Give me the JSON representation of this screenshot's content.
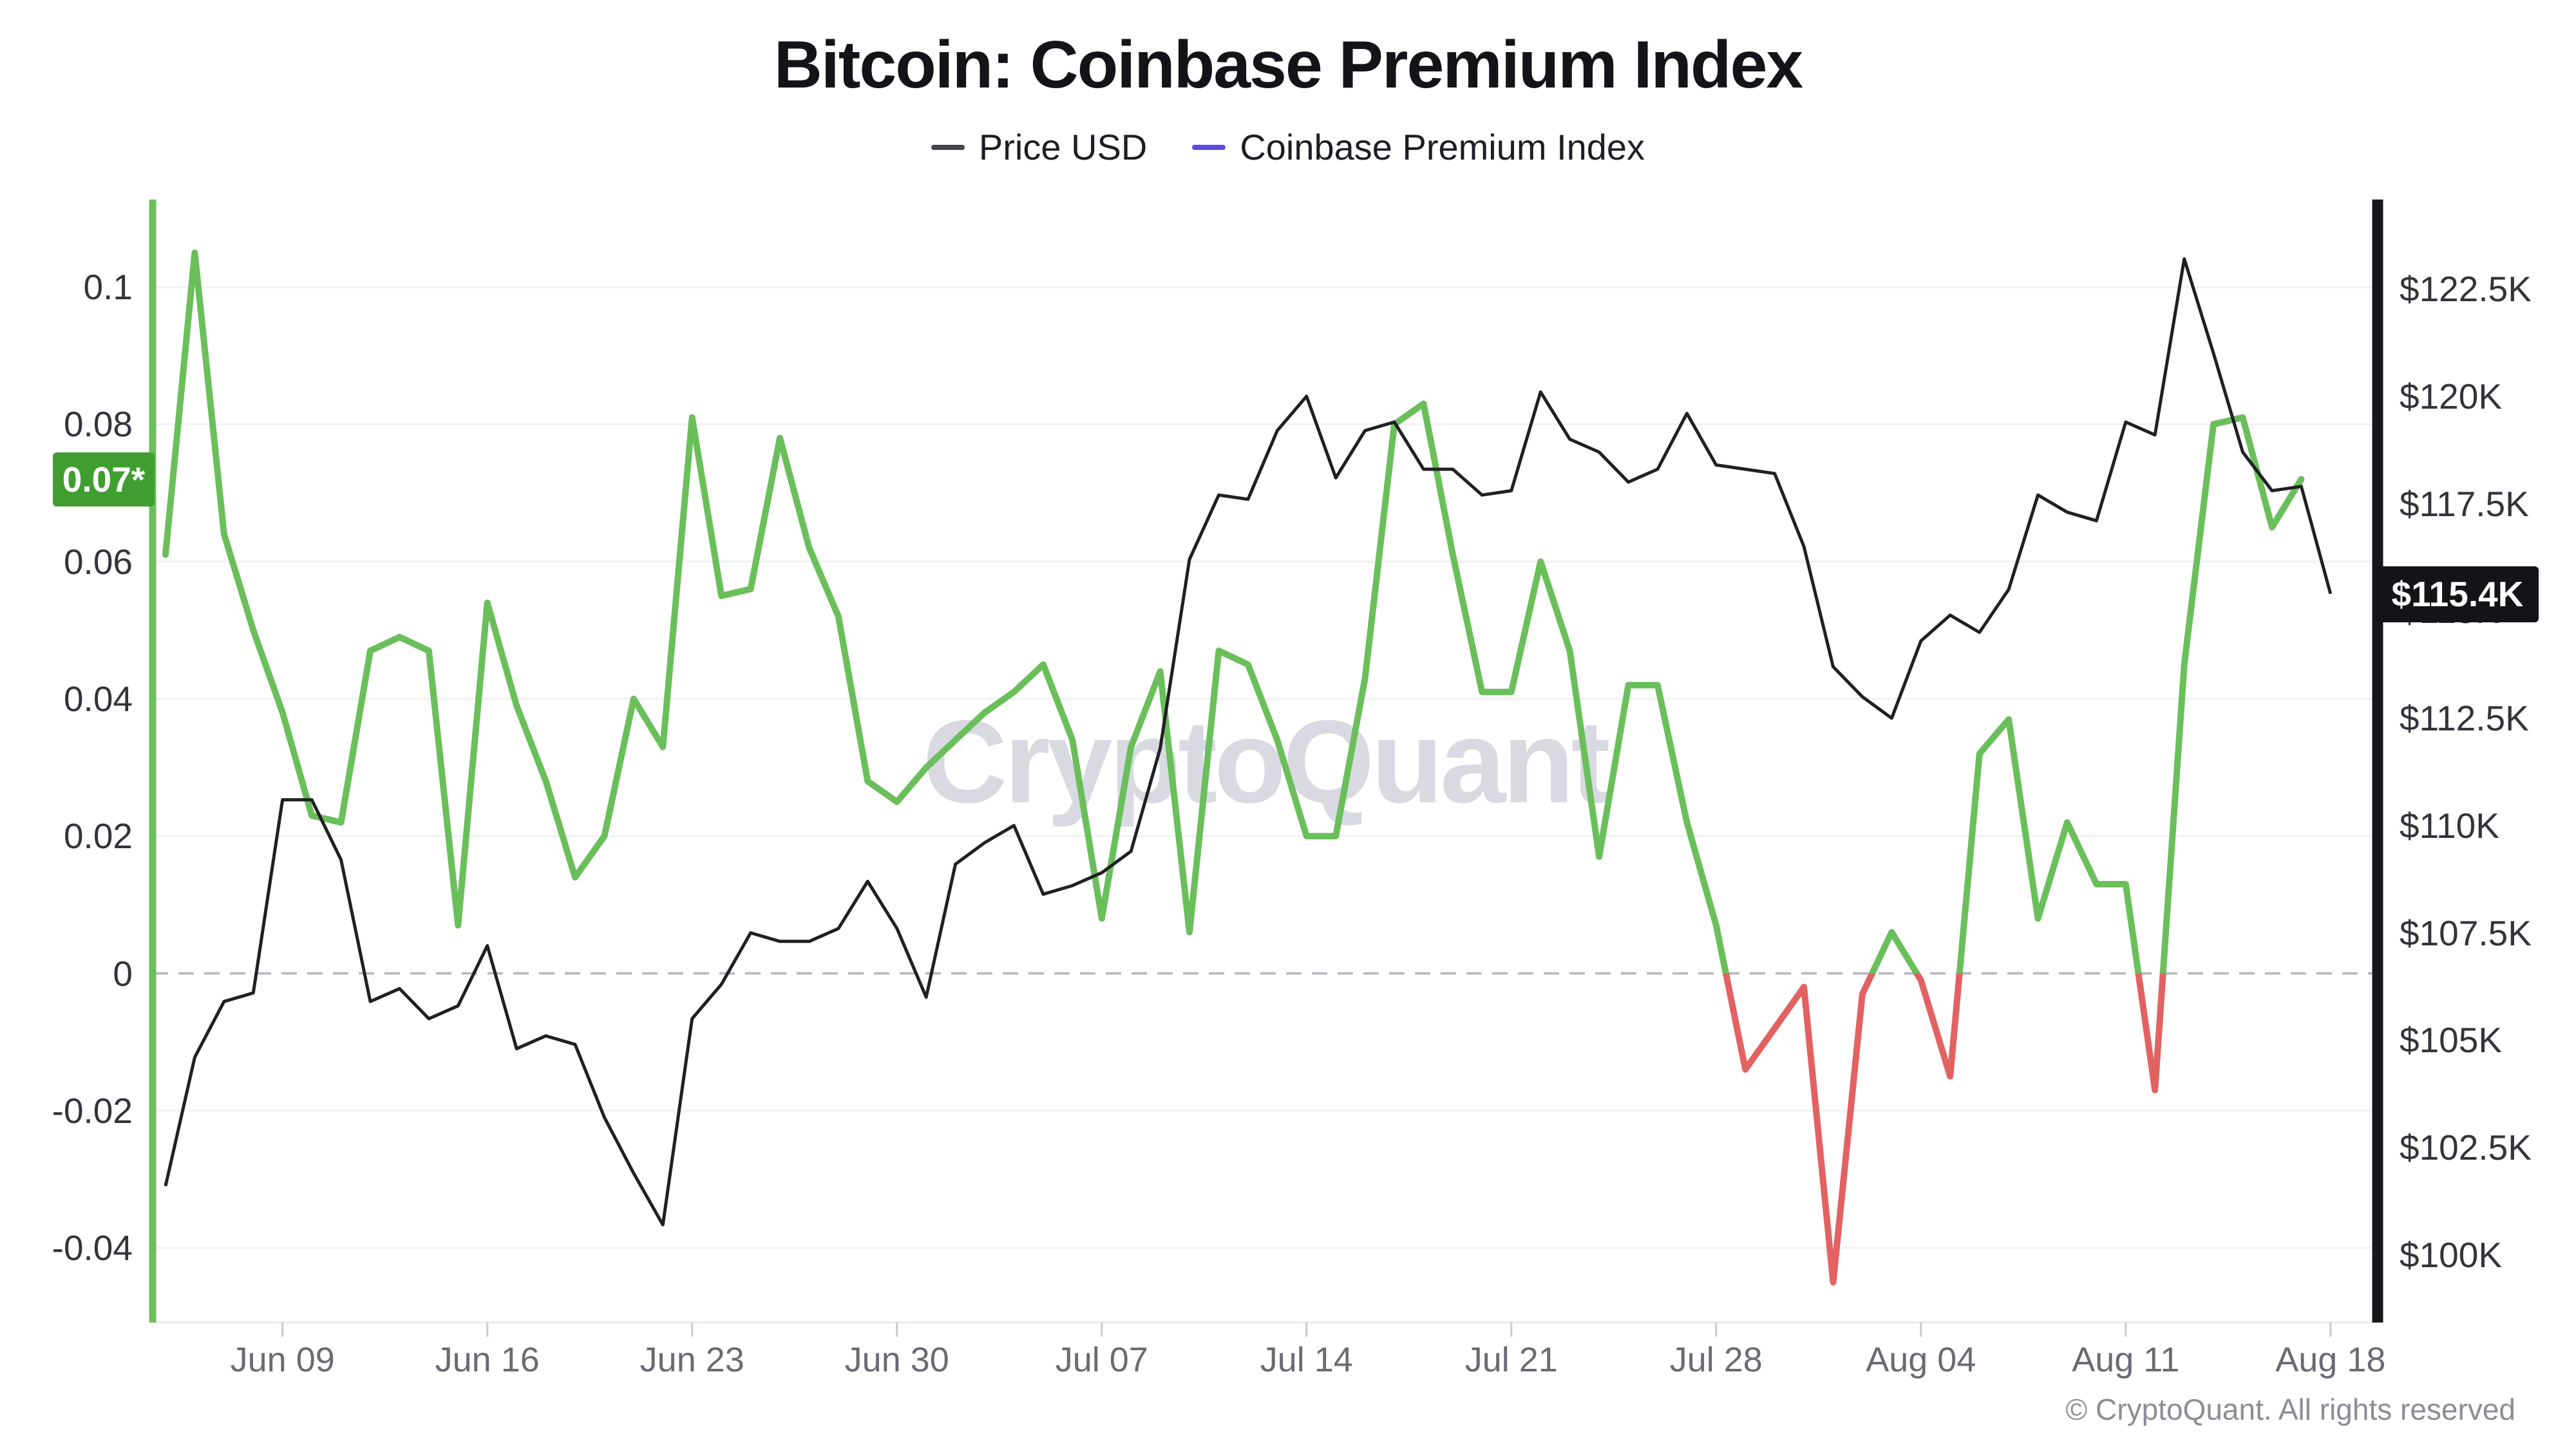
{
  "header": {
    "title": "Bitcoin: Coinbase Premium Index",
    "legend": [
      {
        "label": "Price USD",
        "color": "#44444a"
      },
      {
        "label": "Coinbase Premium Index",
        "color": "#5b4be0"
      }
    ]
  },
  "chart_data": {
    "type": "line",
    "title": "Bitcoin: Coinbase Premium Index",
    "x_dates": [
      "Jun 05",
      "Jun 06",
      "Jun 07",
      "Jun 08",
      "Jun 09",
      "Jun 10",
      "Jun 11",
      "Jun 12",
      "Jun 13",
      "Jun 14",
      "Jun 15",
      "Jun 16",
      "Jun 17",
      "Jun 18",
      "Jun 19",
      "Jun 20",
      "Jun 21",
      "Jun 22",
      "Jun 23",
      "Jun 24",
      "Jun 25",
      "Jun 26",
      "Jun 27",
      "Jun 28",
      "Jun 29",
      "Jun 30",
      "Jul 01",
      "Jul 02",
      "Jul 03",
      "Jul 04",
      "Jul 05",
      "Jul 06",
      "Jul 07",
      "Jul 08",
      "Jul 09",
      "Jul 10",
      "Jul 11",
      "Jul 12",
      "Jul 13",
      "Jul 14",
      "Jul 15",
      "Jul 16",
      "Jul 17",
      "Jul 18",
      "Jul 19",
      "Jul 20",
      "Jul 21",
      "Jul 22",
      "Jul 23",
      "Jul 24",
      "Jul 25",
      "Jul 26",
      "Jul 27",
      "Jul 28",
      "Jul 29",
      "Jul 30",
      "Jul 31",
      "Aug 01",
      "Aug 02",
      "Aug 03",
      "Aug 04",
      "Aug 05",
      "Aug 06",
      "Aug 07",
      "Aug 08",
      "Aug 09",
      "Aug 10",
      "Aug 11",
      "Aug 12",
      "Aug 13",
      "Aug 14",
      "Aug 15",
      "Aug 16",
      "Aug 17",
      "Aug 18"
    ],
    "series": [
      {
        "name": "Price USD",
        "axis": "right",
        "color": "#202024",
        "values": [
          101600,
          104600,
          105900,
          106100,
          110600,
          110600,
          109200,
          105900,
          106200,
          105500,
          105800,
          107200,
          104800,
          105100,
          104900,
          103200,
          101900,
          100700,
          105500,
          106300,
          107500,
          107300,
          107300,
          107600,
          108700,
          107600,
          106000,
          109100,
          109600,
          110000,
          108400,
          108600,
          108900,
          109400,
          111800,
          116200,
          117700,
          117600,
          119200,
          120000,
          118100,
          119200,
          119400,
          118300,
          118300,
          117700,
          117800,
          120100,
          119000,
          118700,
          118000,
          118300,
          119600,
          118400,
          118300,
          118200,
          116500,
          113700,
          113000,
          112500,
          114300,
          114900,
          114500,
          115500,
          117700,
          117300,
          117100,
          119400,
          119100,
          123200,
          121000,
          118700,
          117800,
          117900,
          115400
        ]
      },
      {
        "name": "Coinbase Premium Index",
        "axis": "left",
        "color_positive": "#6abf5b",
        "color_negative": "#e26262",
        "values": [
          0.061,
          0.105,
          0.064,
          0.05,
          0.038,
          0.023,
          0.022,
          0.047,
          0.049,
          0.047,
          0.007,
          0.054,
          0.039,
          0.028,
          0.014,
          0.02,
          0.04,
          0.033,
          0.081,
          0.055,
          0.056,
          0.078,
          0.062,
          0.052,
          0.028,
          0.025,
          0.03,
          0.034,
          0.038,
          0.041,
          0.045,
          0.034,
          0.008,
          0.033,
          0.044,
          0.006,
          0.047,
          0.045,
          0.034,
          0.02,
          0.02,
          0.043,
          0.08,
          0.083,
          0.061,
          0.041,
          0.041,
          0.06,
          0.047,
          0.017,
          0.042,
          0.042,
          0.022,
          0.007,
          -0.014,
          -0.008,
          -0.002,
          -0.045,
          -0.003,
          0.006,
          -0.001,
          -0.015,
          0.032,
          0.037,
          0.008,
          0.022,
          0.013,
          0.013,
          -0.017,
          0.045,
          0.08,
          0.081,
          0.065,
          0.072,
          null
        ]
      }
    ],
    "left_axis": {
      "line_color": "#6abf5b",
      "range": [
        -0.051,
        0.113
      ],
      "label_ticks": [
        {
          "label": "0.1",
          "value": 0.1
        },
        {
          "label": "0.08",
          "value": 0.08
        },
        {
          "label": "0.06",
          "value": 0.06
        },
        {
          "label": "0.04",
          "value": 0.04
        },
        {
          "label": "0.02",
          "value": 0.02
        },
        {
          "label": "0",
          "value": 0
        },
        {
          "label": "-0.02",
          "value": -0.02
        },
        {
          "label": "-0.04",
          "value": -0.04
        }
      ],
      "badge": {
        "label": "0.07*",
        "value": 0.072,
        "bg": "#3f9e2f"
      }
    },
    "right_axis": {
      "line_color": "#17171b",
      "range": [
        98400,
        124600
      ],
      "label_ticks": [
        {
          "label": "$122.5K",
          "value": 122500
        },
        {
          "label": "$120K",
          "value": 120000
        },
        {
          "label": "$117.5K",
          "value": 117500
        },
        {
          "label": "$115K",
          "value": 115000
        },
        {
          "label": "$112.5K",
          "value": 112500
        },
        {
          "label": "$110K",
          "value": 110000
        },
        {
          "label": "$107.5K",
          "value": 107500
        },
        {
          "label": "$105K",
          "value": 105000
        },
        {
          "label": "$102.5K",
          "value": 102500
        },
        {
          "label": "$100K",
          "value": 100000
        }
      ],
      "badge": {
        "label": "$115.4K",
        "value": 115400,
        "bg": "#141418"
      }
    },
    "x_axis": {
      "tick_labels": [
        "Jun 09",
        "Jun 16",
        "Jun 23",
        "Jun 30",
        "Jul 07",
        "Jul 14",
        "Jul 21",
        "Jul 28",
        "Aug 04",
        "Aug 11",
        "Aug 18"
      ],
      "tick_indices": [
        4,
        11,
        18,
        25,
        32,
        39,
        46,
        53,
        60,
        67,
        74
      ]
    },
    "watermark": "CryptoQuant",
    "grid": true,
    "zero_line_dashed": true,
    "legend_position": "top-center"
  },
  "footer": {
    "copyright": "© CryptoQuant. All rights reserved"
  }
}
